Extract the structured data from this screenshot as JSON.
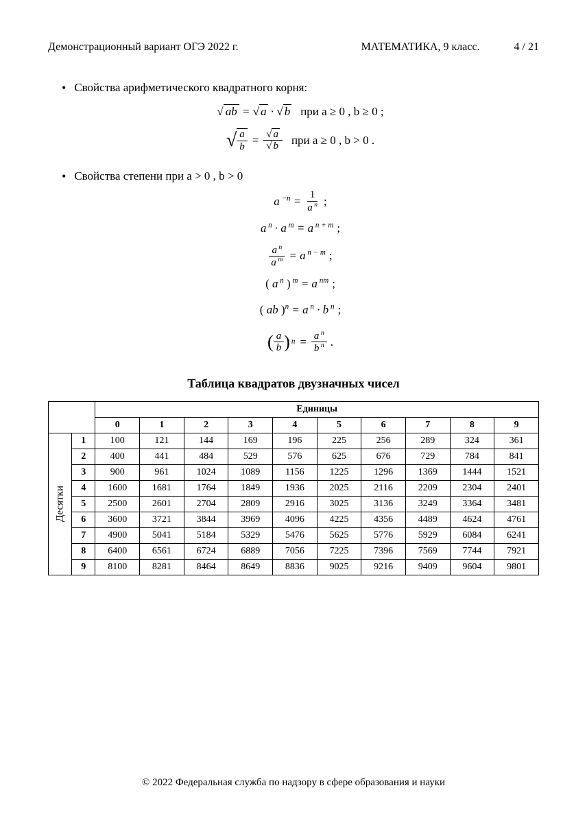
{
  "header": {
    "left": "Демонстрационный вариант ОГЭ 2022 г.",
    "subject": "МАТЕМАТИКА, 9 класс.",
    "page": "4 / 21"
  },
  "section1": {
    "title": "Свойства арифметического квадратного корня:",
    "cond1": "при  a ≥ 0 ,  b ≥ 0 ;",
    "cond2": "при  a ≥ 0 ,  b > 0 ."
  },
  "section2": {
    "title": "Свойства степени при  a > 0 ,  b > 0"
  },
  "table": {
    "title": "Таблица квадратов двузначных чисел",
    "col_header": "Единицы",
    "row_header": "Десятки",
    "col_labels": [
      "0",
      "1",
      "2",
      "3",
      "4",
      "5",
      "6",
      "7",
      "8",
      "9"
    ],
    "row_labels": [
      "1",
      "2",
      "3",
      "4",
      "5",
      "6",
      "7",
      "8",
      "9"
    ],
    "rows": [
      [
        100,
        121,
        144,
        169,
        196,
        225,
        256,
        289,
        324,
        361
      ],
      [
        400,
        441,
        484,
        529,
        576,
        625,
        676,
        729,
        784,
        841
      ],
      [
        900,
        961,
        1024,
        1089,
        1156,
        1225,
        1296,
        1369,
        1444,
        1521
      ],
      [
        1600,
        1681,
        1764,
        1849,
        1936,
        2025,
        2116,
        2209,
        2304,
        2401
      ],
      [
        2500,
        2601,
        2704,
        2809,
        2916,
        3025,
        3136,
        3249,
        3364,
        3481
      ],
      [
        3600,
        3721,
        3844,
        3969,
        4096,
        4225,
        4356,
        4489,
        4624,
        4761
      ],
      [
        4900,
        5041,
        5184,
        5329,
        5476,
        5625,
        5776,
        5929,
        6084,
        6241
      ],
      [
        6400,
        6561,
        6724,
        6889,
        7056,
        7225,
        7396,
        7569,
        7744,
        7921
      ],
      [
        8100,
        8281,
        8464,
        8649,
        8836,
        9025,
        9216,
        9409,
        9604,
        9801
      ]
    ]
  },
  "footer": "© 2022 Федеральная служба по надзору в сфере образования и науки"
}
